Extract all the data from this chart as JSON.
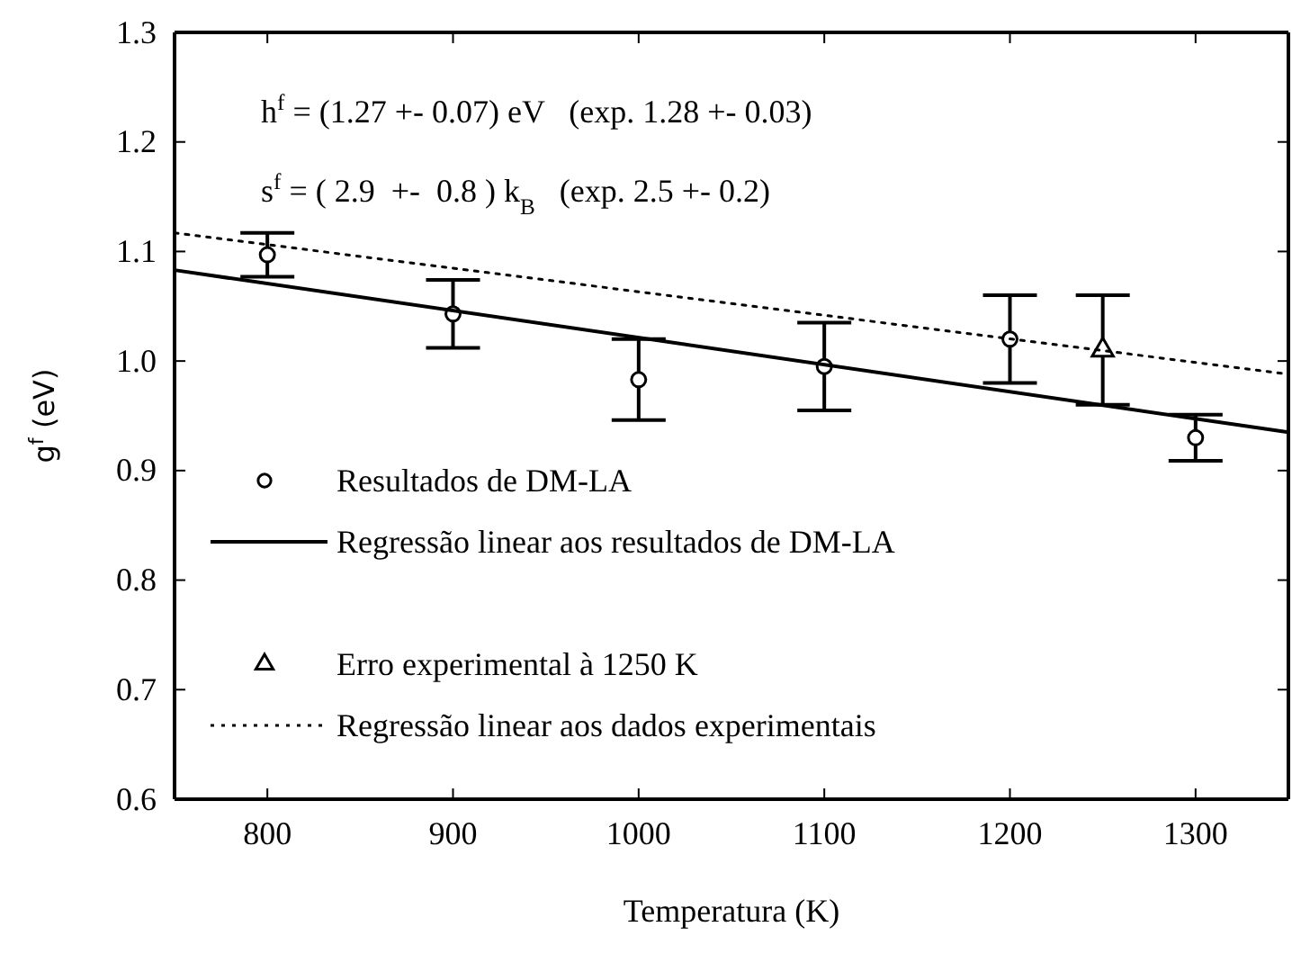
{
  "chart_data": {
    "type": "scatter",
    "xlabel": "Temperatura (K)",
    "ylabel": "g$^{f}$ (eV)",
    "xlim": [
      750,
      1350
    ],
    "xticks": [
      800,
      900,
      1000,
      1100,
      1200,
      1300
    ],
    "ylim": [
      0.6,
      1.3
    ],
    "yticks": [
      0.6,
      0.7,
      0.8,
      0.9,
      {
        "value": 1,
        "label": "1.0"
      },
      1.1,
      1.2,
      1.3
    ],
    "grid": false,
    "legend": "bottom left",
    "annotations": [
      "h$^{f}$ = (1.27 +- 0.07) eV   (exp. 1.28 +- 0.03)",
      "s$^{f}$ = ( 2.9  +-  0.8 ) k$_{B}$   (exp. 2.5 +- 0.2)"
    ],
    "series": [
      {
        "name": "Resultados de DM-LA",
        "marker": "circle",
        "color": "#000000",
        "x": [
          800,
          900,
          1000,
          1100,
          1200,
          1300
        ],
        "values": [
          1.097,
          1.043,
          0.983,
          0.995,
          1.02,
          0.93
        ],
        "errors": [
          0.02,
          0.031,
          0.037,
          0.04,
          0.04,
          0.021
        ]
      },
      {
        "name": "Regressão linear aos resultados de DM-LA",
        "type": "line",
        "marker": "none",
        "line_style": "solid",
        "color": "#000000",
        "x": [
          750,
          1350
        ],
        "values": [
          1.083,
          0.935
        ]
      },
      {
        "name": "Erro experimental à 1250 K",
        "marker": "triangle",
        "color": "#000000",
        "x": [
          1250
        ],
        "values": [
          1.01
        ],
        "errors": [
          0.05
        ]
      },
      {
        "name": "Regressão linear aos dados experimentais",
        "type": "line",
        "marker": "none",
        "line_style": "dotted",
        "color": "#000000",
        "x": [
          750,
          1350
        ],
        "values": [
          1.117,
          0.988
        ]
      }
    ]
  }
}
